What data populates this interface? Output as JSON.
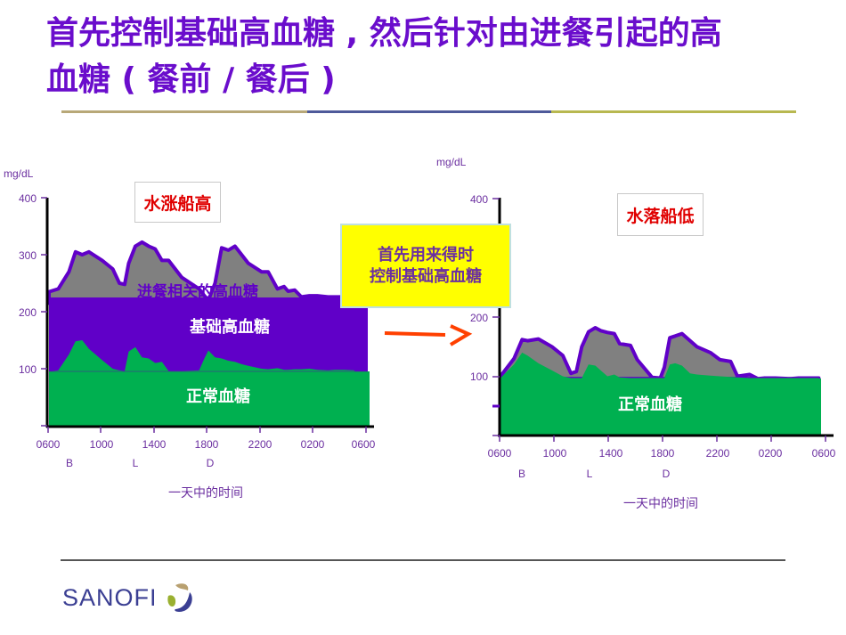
{
  "slide": {
    "title": "首先控制基础高血糖，然后针对由进餐引起的高血糖（餐前 / 餐后）",
    "title_line1": "首先控制基础高血糖 , 然后针对由进餐引起的高",
    "title_line2": "血糖 ( 餐前 / 餐后 )",
    "rule_colors": [
      "#b8a878",
      "#4e5a9a",
      "#b8b850"
    ],
    "callout": {
      "line1": "首先用来得时",
      "line2": "控制基础高血糖",
      "bg_color": "#ffff00"
    },
    "arrow_color": "#ff4000",
    "footer": {
      "logo_text": "SANOFI"
    }
  },
  "colors": {
    "basal_hyperglycemia": "#6000c8",
    "meal_hyperglycemia": "#808080",
    "normal": "#00b050",
    "outline": "#6000c8",
    "axis_text": "#6b2fa0",
    "label_red": "#e00000"
  },
  "chart_data": [
    {
      "type": "area",
      "title": "水涨船高",
      "ylabel": "mg/dL",
      "xlabel": "一天中的时间",
      "ylim": [
        0,
        400
      ],
      "yticks": [
        100,
        200,
        300,
        400
      ],
      "ytick_labels": [
        "100",
        "200",
        "300",
        "400"
      ],
      "xticks": [
        "0600",
        "1000",
        "1400",
        "1800",
        "2200",
        "0200",
        "0600"
      ],
      "meal_markers": [
        {
          "label": "B",
          "time": "0730"
        },
        {
          "label": "L",
          "time": "1200"
        },
        {
          "label": "D",
          "time": "1830"
        }
      ],
      "grid": false,
      "legend": null,
      "layers": [
        {
          "name": "进餐相关的高血糖",
          "color": "#808080"
        },
        {
          "name": "基础高血糖",
          "color": "#6000c8",
          "level": 225
        },
        {
          "name": "正常血糖",
          "color": "#00b050",
          "level": 95
        }
      ],
      "series": [
        {
          "name": "total_glucose",
          "x_hours": [
            0,
            0.7,
            1.5,
            2,
            2.5,
            3,
            4,
            4.8,
            5.3,
            5.7,
            6,
            6.5,
            7,
            7.5,
            8,
            8.5,
            9,
            10,
            11.3,
            11.7,
            12,
            12.5,
            13,
            13.5,
            14,
            14.5,
            15,
            16,
            16.5,
            17.2,
            17.7,
            18,
            18.5,
            19,
            19.6,
            20.2,
            21,
            21.5,
            22.2,
            23
          ],
          "values": [
            235,
            240,
            270,
            305,
            300,
            305,
            290,
            275,
            250,
            248,
            285,
            315,
            322,
            315,
            310,
            290,
            290,
            260,
            240,
            228,
            220,
            250,
            312,
            308,
            315,
            300,
            285,
            270,
            270,
            240,
            244,
            236,
            238,
            226,
            228,
            228,
            226,
            226,
            226,
            226
          ]
        },
        {
          "name": "normal_component",
          "x_hours": [
            0,
            0.7,
            1.5,
            2,
            2.5,
            3,
            4,
            4.8,
            5.3,
            5.7,
            6,
            6.5,
            7,
            7.5,
            8,
            8.5,
            9,
            10,
            11.3,
            11.7,
            12,
            12.5,
            13,
            13.5,
            14,
            14.5,
            15,
            16,
            16.5,
            17.2,
            17.7,
            18,
            18.5,
            19,
            19.6,
            20.2,
            21,
            21.5,
            22.2,
            23
          ],
          "values": [
            95,
            97,
            125,
            148,
            150,
            135,
            115,
            100,
            97,
            96,
            130,
            138,
            120,
            118,
            110,
            112,
            96,
            96,
            97,
            118,
            132,
            120,
            118,
            114,
            112,
            108,
            105,
            100,
            99,
            101,
            98,
            98,
            99,
            99,
            100,
            98,
            97,
            98,
            98,
            97
          ]
        }
      ]
    },
    {
      "type": "area",
      "title": "水落船低",
      "ylabel": "mg/dL",
      "xlabel": "一天中的时间",
      "ylim": [
        0,
        400
      ],
      "yticks": [
        100,
        200,
        400
      ],
      "ytick_labels": [
        "100",
        "200",
        "400"
      ],
      "xticks": [
        "0600",
        "1000",
        "1400",
        "1800",
        "2200",
        "0200",
        "0600"
      ],
      "meal_markers": [
        {
          "label": "B",
          "time": "0730"
        },
        {
          "label": "L",
          "time": "1200"
        },
        {
          "label": "D",
          "time": "1830"
        }
      ],
      "grid": false,
      "legend": null,
      "layers": [
        {
          "name": "进餐相关的高血糖",
          "color": "#808080"
        },
        {
          "name": "正常血糖",
          "color": "#00b050",
          "level": 97
        }
      ],
      "series": [
        {
          "name": "total_glucose",
          "x_hours": [
            0,
            1,
            1.6,
            2,
            2.8,
            3.8,
            4.6,
            5.2,
            5.6,
            6,
            6.5,
            7,
            7.4,
            7.9,
            8.4,
            8.8,
            9.6,
            10.1,
            11.2,
            11.8,
            12.1,
            12.5,
            12.9,
            13.4,
            14,
            14.5,
            15.5,
            16.2,
            17,
            17.5,
            18.4,
            19,
            19.5,
            20.3,
            21.4,
            22,
            23.5
          ],
          "values": [
            100,
            130,
            162,
            160,
            163,
            150,
            135,
            105,
            108,
            150,
            175,
            182,
            177,
            174,
            172,
            155,
            152,
            128,
            98,
            97,
            115,
            165,
            168,
            172,
            160,
            150,
            140,
            128,
            125,
            100,
            103,
            96,
            97,
            97,
            96,
            97,
            97
          ]
        },
        {
          "name": "normal_component",
          "x_hours": [
            0,
            1,
            1.6,
            2,
            2.8,
            3.8,
            4.6,
            5.2,
            5.6,
            6,
            6.5,
            7,
            7.4,
            7.9,
            8.4,
            8.8,
            9.6,
            10.1,
            11.2,
            11.8,
            12.1,
            12.5,
            12.9,
            13.4,
            14,
            14.5,
            15.5,
            16.2,
            17,
            17.5,
            18.4,
            19,
            19.5,
            20.3,
            21.4,
            22,
            23.5
          ],
          "values": [
            97,
            120,
            140,
            135,
            122,
            110,
            100,
            97,
            97,
            97,
            120,
            118,
            110,
            100,
            103,
            98,
            97,
            97,
            97,
            97,
            97,
            120,
            122,
            118,
            105,
            103,
            101,
            100,
            99,
            98,
            97,
            97,
            97,
            97,
            97,
            97,
            97
          ]
        }
      ]
    }
  ],
  "left_chart": {
    "unit": "mg/dL",
    "ytick_labels": [
      "400",
      "300",
      "200",
      "100"
    ],
    "xtick_labels": [
      "0600",
      "1000",
      "1400",
      "1800",
      "2200",
      "0200",
      "0600"
    ],
    "meal_labels": [
      "B",
      "L",
      "D"
    ],
    "xlabel": "一天中的时间",
    "caption": "水涨船高",
    "layer_meal": "进餐相关的高血糖",
    "layer_basal": "基础高血糖",
    "layer_normal": "正常血糖"
  },
  "right_chart": {
    "unit": "mg/dL",
    "ytick_labels": [
      "400",
      "200",
      "100"
    ],
    "xtick_labels": [
      "0600",
      "1000",
      "1400",
      "1800",
      "2200",
      "0200",
      "0600"
    ],
    "meal_labels": [
      "B",
      "L",
      "D"
    ],
    "xlabel": "一天中的时间",
    "caption": "水落船低",
    "layer_normal": "正常血糖"
  }
}
